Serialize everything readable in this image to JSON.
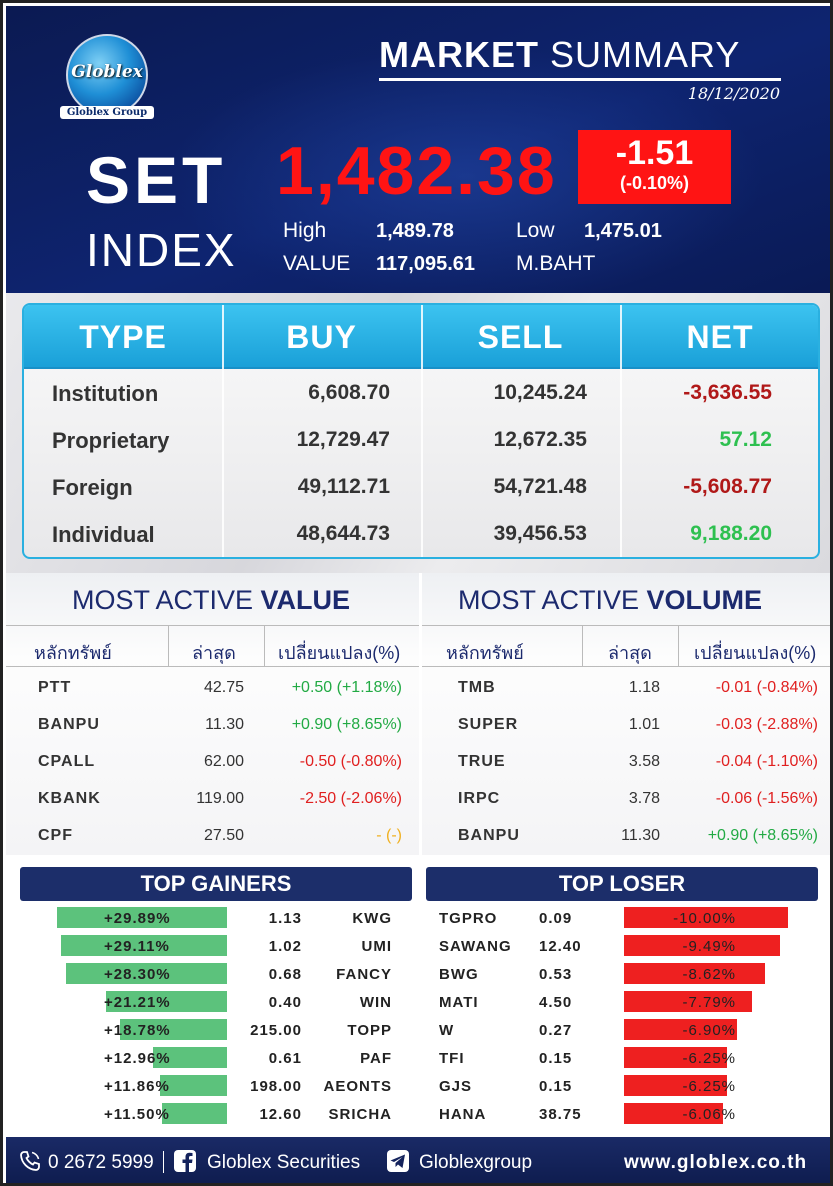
{
  "header": {
    "logo_text": "Globlex",
    "logo_group": "Globlex Group",
    "title_bold": "MARKET",
    "title_rest": " SUMMARY",
    "date": "18/12/2020",
    "set_label": "SET",
    "index_label": "INDEX",
    "index_value": "1,482.38",
    "change": "-1.51",
    "change_pct": "(-0.10%)",
    "high_label": "High",
    "high_value": "1,489.78",
    "low_label": "Low",
    "low_value": "1,475.01",
    "value_label": "VALUE",
    "value_value": "117,095.61",
    "value_unit": "M.BAHT",
    "change_color": "#ff1414"
  },
  "investors": {
    "headers": [
      "TYPE",
      "BUY",
      "SELL",
      "NET"
    ],
    "rows": [
      {
        "type": "Institution",
        "buy": "6,608.70",
        "sell": "10,245.24",
        "net": "-3,636.55",
        "net_dir": "neg"
      },
      {
        "type": "Proprietary",
        "buy": "12,729.47",
        "sell": "12,672.35",
        "net": "57.12",
        "net_dir": "pos"
      },
      {
        "type": "Foreign",
        "buy": "49,112.71",
        "sell": "54,721.48",
        "net": "-5,608.77",
        "net_dir": "neg"
      },
      {
        "type": "Individual",
        "buy": "48,644.73",
        "sell": "39,456.53",
        "net": "9,188.20",
        "net_dir": "pos"
      }
    ]
  },
  "most_active_value": {
    "title_rest": "MOST ACTIVE ",
    "title_bold": "VALUE",
    "headers": [
      "หลักทรัพย์",
      "ล่าสุด",
      "เปลี่ยนแปลง(%)"
    ],
    "rows": [
      {
        "symbol": "PTT",
        "last": "42.75",
        "change": "+0.50 (+1.18%)",
        "dir": "pos"
      },
      {
        "symbol": "BANPU",
        "last": "11.30",
        "change": "+0.90 (+8.65%)",
        "dir": "pos"
      },
      {
        "symbol": "CPALL",
        "last": "62.00",
        "change": "-0.50 (-0.80%)",
        "dir": "neg"
      },
      {
        "symbol": "KBANK",
        "last": "119.00",
        "change": "-2.50 (-2.06%)",
        "dir": "neg"
      },
      {
        "symbol": "CPF",
        "last": "27.50",
        "change": "- (-)",
        "dir": "neu"
      }
    ]
  },
  "most_active_volume": {
    "title_rest": "MOST ACTIVE ",
    "title_bold": "VOLUME",
    "headers": [
      "หลักทรัพย์",
      "ล่าสุด",
      "เปลี่ยนแปลง(%)"
    ],
    "rows": [
      {
        "symbol": "TMB",
        "last": "1.18",
        "change": "-0.01 (-0.84%)",
        "dir": "neg"
      },
      {
        "symbol": "SUPER",
        "last": "1.01",
        "change": "-0.03 (-2.88%)",
        "dir": "neg"
      },
      {
        "symbol": "TRUE",
        "last": "3.58",
        "change": "-0.04 (-1.10%)",
        "dir": "neg"
      },
      {
        "symbol": "IRPC",
        "last": "3.78",
        "change": "-0.06 (-1.56%)",
        "dir": "neg"
      },
      {
        "symbol": "BANPU",
        "last": "11.30",
        "change": "+0.90 (+8.65%)",
        "dir": "pos"
      }
    ]
  },
  "top_gainers": {
    "title": "TOP GAINERS",
    "rows": [
      {
        "pct": "+29.89%",
        "pct_value": 29.89,
        "price": "1.13",
        "symbol": "KWG"
      },
      {
        "pct": "+29.11%",
        "pct_value": 29.11,
        "price": "1.02",
        "symbol": "UMI"
      },
      {
        "pct": "+28.30%",
        "pct_value": 28.3,
        "price": "0.68",
        "symbol": "FANCY"
      },
      {
        "pct": "+21.21%",
        "pct_value": 21.21,
        "price": "0.40",
        "symbol": "WIN"
      },
      {
        "pct": "+18.78%",
        "pct_value": 18.78,
        "price": "215.00",
        "symbol": "TOPP"
      },
      {
        "pct": "+12.96%",
        "pct_value": 12.96,
        "price": "0.61",
        "symbol": "PAF"
      },
      {
        "pct": "+11.86%",
        "pct_value": 11.86,
        "price": "198.00",
        "symbol": "AEONTS"
      },
      {
        "pct": "+11.50%",
        "pct_value": 11.5,
        "price": "12.60",
        "symbol": "SRICHA"
      }
    ]
  },
  "top_loser": {
    "title": "TOP LOSER",
    "rows": [
      {
        "symbol": "TGPRO",
        "price": "0.09",
        "pct": "-10.00%",
        "pct_value": 10.0
      },
      {
        "symbol": "SAWANG",
        "price": "12.40",
        "pct": "-9.49%",
        "pct_value": 9.49
      },
      {
        "symbol": "BWG",
        "price": "0.53",
        "pct": "-8.62%",
        "pct_value": 8.62
      },
      {
        "symbol": "MATI",
        "price": "4.50",
        "pct": "-7.79%",
        "pct_value": 7.79
      },
      {
        "symbol": "W",
        "price": "0.27",
        "pct": "-6.90%",
        "pct_value": 6.9
      },
      {
        "symbol": "TFI",
        "price": "0.15",
        "pct": "-6.25%",
        "pct_value": 6.25
      },
      {
        "symbol": "GJS",
        "price": "0.15",
        "pct": "-6.25%",
        "pct_value": 6.25
      },
      {
        "symbol": "HANA",
        "price": "38.75",
        "pct": "-6.06%",
        "pct_value": 6.06
      }
    ]
  },
  "footer": {
    "phone": "0 2672 5999",
    "facebook": "Globlex Securities",
    "telegram": "Globlexgroup",
    "website": "www.globlex.co.th",
    "phone_icon": "phone-icon",
    "facebook_icon": "facebook-icon",
    "telegram_icon": "telegram-icon"
  },
  "colors": {
    "positive": "#22aa44",
    "negative": "#e02020",
    "neutral": "#f0b020",
    "gainer_bar": "#5cc27c",
    "loser_bar": "#ee2020"
  }
}
